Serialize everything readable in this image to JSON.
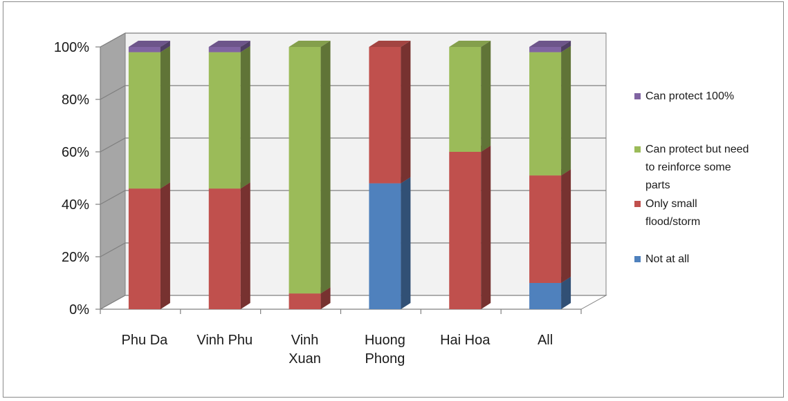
{
  "chart_data": {
    "type": "bar",
    "stacked": true,
    "percent": true,
    "three_d": true,
    "categories": [
      [
        "Phu Da"
      ],
      [
        "Vinh Phu"
      ],
      [
        "Vinh",
        "Xuan"
      ],
      [
        "Huong",
        "Phong"
      ],
      [
        "Hai Hoa"
      ],
      [
        "All"
      ]
    ],
    "series": [
      {
        "name": "Not at all",
        "color": "#4F81BD",
        "values": [
          0,
          0,
          0,
          48,
          0,
          10
        ]
      },
      {
        "name": "Only small flood/storm",
        "color": "#C0504D",
        "values": [
          46,
          46,
          6,
          52,
          60,
          41
        ]
      },
      {
        "name": "Can protect but need to reinforce some parts",
        "color": "#9BBB59",
        "values": [
          52,
          52,
          94,
          0,
          40,
          47
        ]
      },
      {
        "name": "Can protect 100%",
        "color": "#8064A2",
        "values": [
          2,
          2,
          0,
          0,
          0,
          2
        ]
      }
    ],
    "legend": {
      "position": "right",
      "entries": [
        {
          "series": 3,
          "lines": [
            "Can protect 100%"
          ]
        },
        {
          "series": 2,
          "lines": [
            "Can protect but need",
            "to reinforce some",
            "parts"
          ]
        },
        {
          "series": 1,
          "lines": [
            "Only small",
            "flood/storm"
          ]
        },
        {
          "series": 0,
          "lines": [
            "Not at all"
          ]
        }
      ]
    },
    "yticks": [
      "0%",
      "20%",
      "40%",
      "60%",
      "80%",
      "100%"
    ],
    "ylim": [
      0,
      100
    ],
    "grid": true
  }
}
